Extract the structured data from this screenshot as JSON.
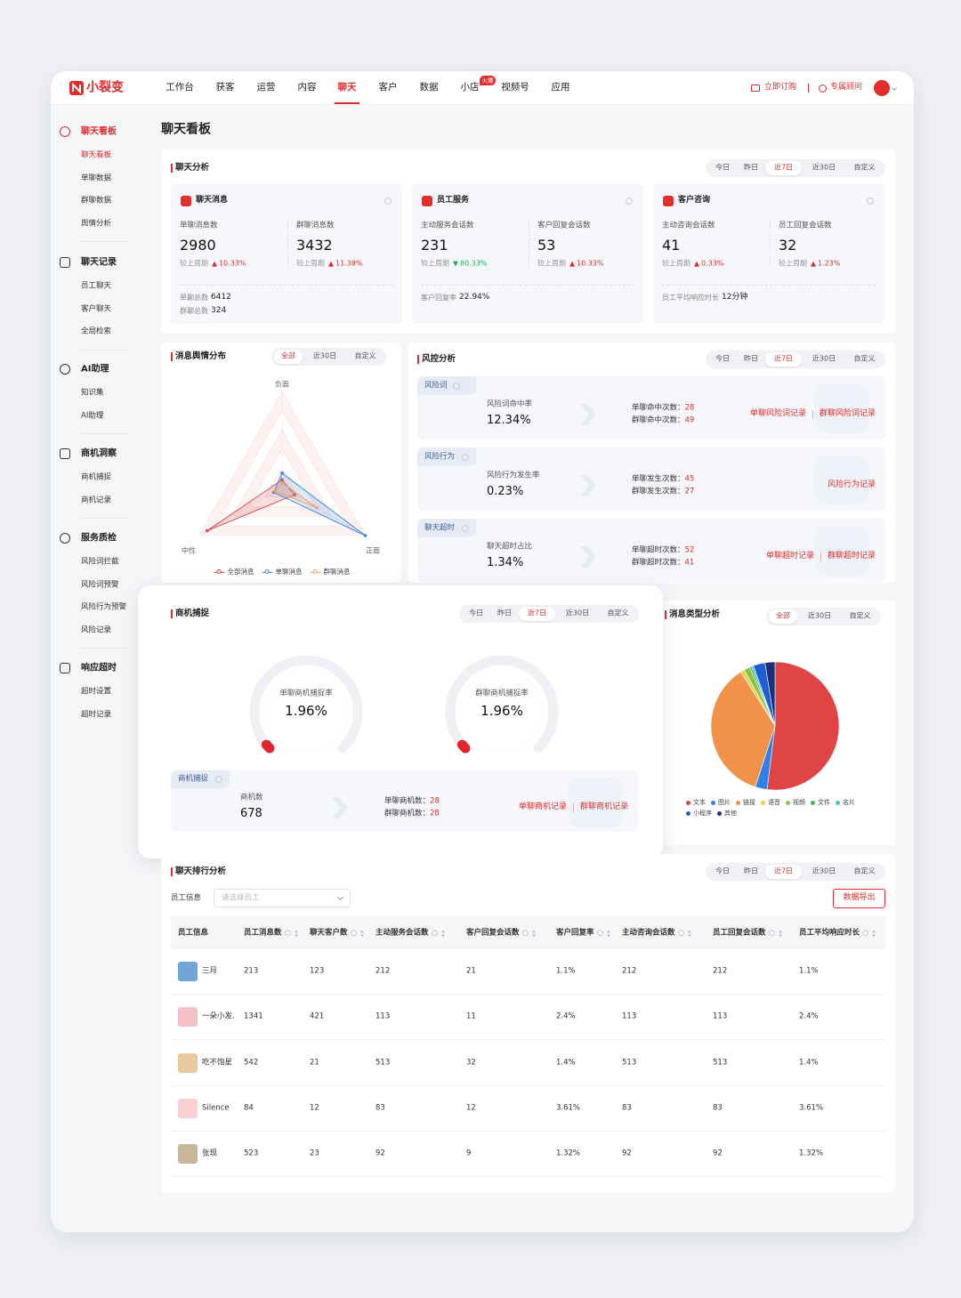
{
  "header": {
    "logo": "小裂变",
    "nav": [
      "工作台",
      "获客",
      "运营",
      "内容",
      "聊天",
      "客户",
      "数据",
      "小店",
      "视频号",
      "应用"
    ],
    "badge": "火爆",
    "actions": [
      "立即订购",
      "专属顾问"
    ]
  },
  "sidebar": [
    {
      "title": "聊天看板",
      "items": [
        "聊天看板",
        "单聊数据",
        "群聊数据",
        "舆情分析"
      ]
    },
    {
      "title": "聊天记录",
      "items": [
        "员工聊天",
        "客户聊天",
        "全局检索"
      ]
    },
    {
      "title": "AI助理",
      "items": [
        "知识集",
        "AI助理"
      ]
    },
    {
      "title": "商机洞察",
      "items": [
        "商机捕捉",
        "商机记录"
      ]
    },
    {
      "title": "服务质检",
      "items": [
        "风险词拦截",
        "风险词预警",
        "风险行为预警",
        "风险记录"
      ]
    },
    {
      "title": "响应超时",
      "items": [
        "超时设置",
        "超时记录"
      ]
    }
  ],
  "page_title": "聊天看板",
  "chat_analysis": {
    "title": "聊天分析",
    "ranges": [
      "今日",
      "昨日",
      "近7日",
      "近30日",
      "自定义"
    ],
    "cards": [
      {
        "title": "聊天消息",
        "metrics": [
          {
            "label": "单聊消息数",
            "value": "2980",
            "compare": "较上周期",
            "change": "10.33%",
            "trend": "up"
          },
          {
            "label": "群聊消息数",
            "value": "3432",
            "compare": "较上周期",
            "change": "11.38%",
            "trend": "up"
          }
        ],
        "footer": [
          {
            "label": "单聊总数",
            "value": "6412"
          },
          {
            "label": "群聊总数",
            "value": "324"
          }
        ]
      },
      {
        "title": "员工服务",
        "metrics": [
          {
            "label": "主动服务会话数",
            "value": "231",
            "compare": "较上周期",
            "change": "80.33%",
            "trend": "down"
          },
          {
            "label": "客户回复会话数",
            "value": "53",
            "compare": "较上周期",
            "change": "10.33%",
            "trend": "up"
          }
        ],
        "footer": [
          {
            "label": "客户回复率",
            "value": "22.94%"
          }
        ]
      },
      {
        "title": "客户咨询",
        "metrics": [
          {
            "label": "主动咨询会话数",
            "value": "41",
            "compare": "较上周期",
            "change": "0.33%",
            "trend": "up"
          },
          {
            "label": "员工回复会话数",
            "value": "32",
            "compare": "较上周期",
            "change": "1.23%",
            "trend": "up"
          }
        ],
        "footer": [
          {
            "label": "员工平均响应时长",
            "value": "12分钟"
          }
        ]
      }
    ]
  },
  "risk": {
    "title": "风控分析",
    "ranges": [
      "今日",
      "昨日",
      "近7日",
      "近30日",
      "自定义"
    ],
    "rows": [
      {
        "tag": "风险词",
        "label": "风险词命中率",
        "value": "12.34%",
        "details": [
          {
            "label": "单聊命中次数：",
            "value": "28"
          },
          {
            "label": "群聊命中次数：",
            "value": "49"
          }
        ],
        "links": [
          "单聊风险词记录",
          "群聊风险词记录"
        ]
      },
      {
        "tag": "风险行为",
        "label": "风险行为发生率",
        "value": "0.23%",
        "details": [
          {
            "label": "单聊发生次数：",
            "value": "45"
          },
          {
            "label": "群聊发生次数：",
            "value": "27"
          }
        ],
        "links": [
          "风险行为记录"
        ]
      },
      {
        "tag": "聊天超时",
        "label": "聊天超时占比",
        "value": "1.34%",
        "details": [
          {
            "label": "单聊超时次数：",
            "value": "52"
          },
          {
            "label": "群聊超时次数：",
            "value": "41"
          }
        ],
        "links": [
          "单聊超时记录",
          "群聊超时记录"
        ]
      }
    ]
  },
  "chart_data": [
    {
      "type": "radar",
      "title": "消息舆情分布",
      "ranges": [
        "全部",
        "近30日",
        "自定义"
      ],
      "categories": [
        "负面",
        "正面",
        "中性"
      ],
      "rlim": [
        0,
        100
      ],
      "series": [
        {
          "name": "全部消息",
          "color": "#e0474c",
          "values": [
            8,
            15,
            90
          ]
        },
        {
          "name": "单聊消息",
          "color": "#3b8be8",
          "values": [
            15,
            100,
            10
          ]
        },
        {
          "name": "群聊消息",
          "color": "#f0a060",
          "values": [
            5,
            42,
            8
          ]
        }
      ]
    },
    {
      "type": "pie",
      "title": "消息类型分析",
      "ranges": [
        "全部",
        "近30日",
        "自定义"
      ],
      "categories": [
        "文本",
        "图片",
        "链接",
        "语音",
        "视频",
        "文件",
        "名片",
        "小程序",
        "其他"
      ],
      "values": [
        52,
        3,
        36,
        1,
        1.5,
        0.5,
        0.5,
        3,
        2.5
      ],
      "colors": [
        "#e04545",
        "#2f80ed",
        "#f0924a",
        "#e8d44d",
        "#8bc34a",
        "#4caf50",
        "#4dbfd0",
        "#1f5fd6",
        "#1e2f7a"
      ]
    },
    {
      "type": "gauge",
      "title": "商机捕捉",
      "ranges": [
        "今日",
        "昨日",
        "近7日",
        "近30日",
        "自定义"
      ],
      "categories": [
        "单聊商机捕捉率",
        "群聊商机捕捉率"
      ],
      "values": [
        1.96,
        1.96
      ],
      "value_labels": [
        "1.96%",
        "1.96%"
      ],
      "ylim": [
        0,
        100
      ],
      "color": "#e0262d",
      "summary": {
        "tag": "商机捕捉",
        "label": "商机数",
        "value": "678",
        "details": [
          {
            "label": "单聊商机数：",
            "value": "28"
          },
          {
            "label": "群聊商机数：",
            "value": "28"
          }
        ],
        "links": [
          "单聊商机记录",
          "群聊商机记录"
        ]
      }
    }
  ],
  "ranking": {
    "title": "聊天排行分析",
    "ranges": [
      "今日",
      "昨日",
      "近7日",
      "近30日",
      "自定义"
    ],
    "filter_label": "员工信息",
    "placeholder": "请选择员工",
    "export": "数据导出",
    "columns": [
      "员工信息",
      "员工消息数",
      "聊天客户数",
      "主动服务会话数",
      "客户回复会话数",
      "客户回复率",
      "主动咨询会话数",
      "员工回复会话数",
      "员工平均响应时长"
    ],
    "rows": [
      [
        "三月",
        "213",
        "123",
        "212",
        "21",
        "1.1%",
        "212",
        "212",
        "1.1%"
      ],
      [
        "一朵小发.",
        "1341",
        "421",
        "113",
        "11",
        "2.4%",
        "113",
        "113",
        "2.4%"
      ],
      [
        "吃不饱星",
        "542",
        "21",
        "513",
        "32",
        "1.4%",
        "513",
        "513",
        "1.4%"
      ],
      [
        "Silence",
        "84",
        "12",
        "83",
        "12",
        "3.61%",
        "83",
        "83",
        "3.61%"
      ],
      [
        "张现",
        "523",
        "23",
        "92",
        "9",
        "1.32%",
        "92",
        "92",
        "1.32%"
      ]
    ]
  }
}
